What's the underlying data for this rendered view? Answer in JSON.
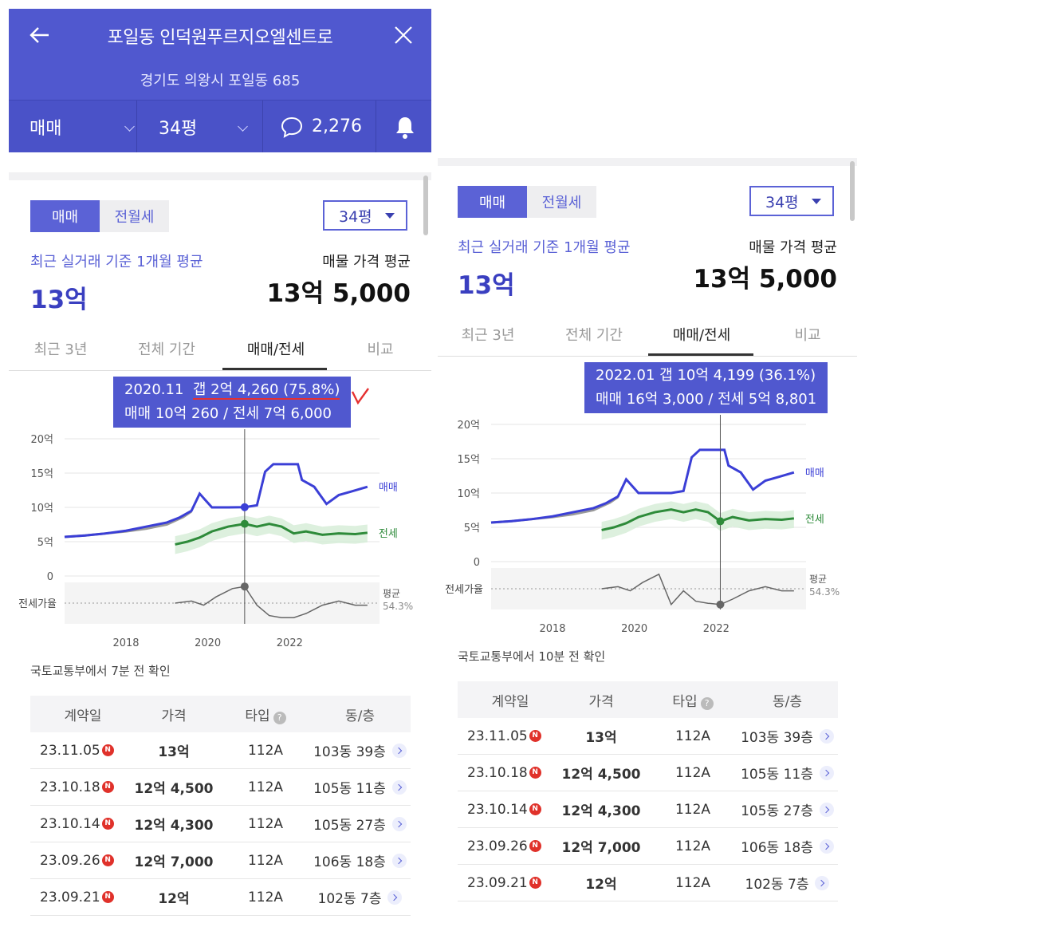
{
  "header": {
    "title": "포일동 인덕원푸르지오엘센트로",
    "address": "경기도 의왕시 포일동 685",
    "trade_type": "매매",
    "area": "34평",
    "comment_count": "2,276"
  },
  "panel_left": {
    "toggle": [
      "매매",
      "전월세"
    ],
    "area_select": "34평",
    "recent_label": "최근 실거래 기준 1개월 평균",
    "recent_value": "13억",
    "listing_label": "매물 가격 평균",
    "listing_value": "13억 5,000",
    "tabs": [
      "최근 3년",
      "전체 기간",
      "매매/전세",
      "비교"
    ],
    "tooltip_line1_date": "2020.11",
    "tooltip_line1_gap": "갭 2억 4,260 (75.8%)",
    "tooltip_line2": "매매 10억 260 / 전세 7억 6,000",
    "confirm": "국토교통부에서 7분 전 확인"
  },
  "panel_right": {
    "toggle": [
      "매매",
      "전월세"
    ],
    "area_select": "34평",
    "recent_label": "최근 실거래 기준 1개월 평균",
    "recent_value": "13억",
    "listing_label": "매물 가격 평균",
    "listing_value": "13억 5,000",
    "tabs": [
      "최근 3년",
      "전체 기간",
      "매매/전세",
      "비교"
    ],
    "tooltip_line1": "2022.01  갭 10억 4,199 (36.1%)",
    "tooltip_line2": "매매 16억 3,000 / 전세 5억 8,801",
    "confirm": "국토교통부에서 10분 전 확인"
  },
  "chart_labels": {
    "y_ticks": [
      "20억",
      "15억",
      "10억",
      "5억",
      "0"
    ],
    "ratio_label": "전세가율",
    "sale": "매매",
    "jeonse": "전세",
    "avg": "평균",
    "avg_value": "54.3%",
    "x_ticks": [
      "2018",
      "2020",
      "2022"
    ]
  },
  "table": {
    "headers": [
      "계약일",
      "가격",
      "타입",
      "동/층"
    ],
    "rows": [
      {
        "date": "23.11.05",
        "price": "13억",
        "type": "112A",
        "floor": "103동 39층"
      },
      {
        "date": "23.10.18",
        "price": "12억 4,500",
        "type": "112A",
        "floor": "105동 11층"
      },
      {
        "date": "23.10.14",
        "price": "12억 4,300",
        "type": "112A",
        "floor": "105동 27층"
      },
      {
        "date": "23.09.26",
        "price": "12억 7,000",
        "type": "112A",
        "floor": "106동 18층"
      },
      {
        "date": "23.09.21",
        "price": "12억",
        "type": "112A",
        "floor": "102동 7층"
      }
    ]
  },
  "chart_data": [
    {
      "type": "line",
      "x_ticks": [
        "2018",
        "2020",
        "2022"
      ],
      "ylim": [
        0,
        20
      ],
      "y_unit": "억",
      "series": [
        {
          "name": "매매",
          "color": "#3b3fd6",
          "x": [
            2016.5,
            2017,
            2017.5,
            2018,
            2018.5,
            2019,
            2019.3,
            2019.6,
            2019.8,
            2020.1,
            2020.5,
            2020.9,
            2021.2,
            2021.4,
            2021.6,
            2021.9,
            2022.2,
            2022.3,
            2022.6,
            2022.9,
            2023.2,
            2023.5,
            2023.9
          ],
          "y": [
            5.7,
            5.9,
            6.2,
            6.6,
            7.2,
            7.8,
            8.5,
            9.5,
            12,
            10,
            10,
            10.03,
            10.3,
            15.2,
            16.3,
            16.3,
            16.3,
            14,
            13,
            10.5,
            11.8,
            12.3,
            13
          ]
        },
        {
          "name": "전세",
          "color": "#2e8b3a",
          "x": [
            2019.2,
            2019.5,
            2019.8,
            2020.1,
            2020.5,
            2020.9,
            2021.2,
            2021.5,
            2021.8,
            2022.1,
            2022.4,
            2022.8,
            2023.2,
            2023.6,
            2023.9
          ],
          "y": [
            4.6,
            5,
            5.6,
            6.5,
            7.2,
            7.6,
            7.2,
            7.6,
            7.2,
            6.2,
            6.5,
            6,
            6.2,
            6.1,
            6.3
          ]
        }
      ],
      "annotation": "2020.11 갭 2억 4,260 (75.8%)",
      "jeonse_ratio_avg": "54.3%"
    },
    {
      "type": "line",
      "x_ticks": [
        "2018",
        "2020",
        "2022"
      ],
      "ylim": [
        0,
        20
      ],
      "y_unit": "억",
      "series": [
        {
          "name": "매매",
          "color": "#3b3fd6",
          "x": [
            2016.5,
            2017,
            2017.5,
            2018,
            2018.5,
            2019,
            2019.3,
            2019.6,
            2019.8,
            2020.1,
            2020.5,
            2020.9,
            2021.2,
            2021.4,
            2021.6,
            2021.9,
            2022.2,
            2022.3,
            2022.6,
            2022.9,
            2023.2,
            2023.5,
            2023.9
          ],
          "y": [
            5.7,
            5.9,
            6.2,
            6.6,
            7.2,
            7.8,
            8.5,
            9.5,
            12,
            10,
            10,
            10,
            10.3,
            15.2,
            16.3,
            16.3,
            16.3,
            14,
            13,
            10.5,
            11.8,
            12.3,
            13
          ]
        },
        {
          "name": "전세",
          "color": "#2e8b3a",
          "x": [
            2019.2,
            2019.5,
            2019.8,
            2020.1,
            2020.5,
            2020.9,
            2021.2,
            2021.5,
            2021.8,
            2022.1,
            2022.4,
            2022.8,
            2023.2,
            2023.6,
            2023.9
          ],
          "y": [
            4.6,
            5,
            5.6,
            6.5,
            7.2,
            7.6,
            7.2,
            7.6,
            7.2,
            5.88,
            6.5,
            6,
            6.2,
            6.1,
            6.3
          ]
        }
      ],
      "annotation": "2022.01 갭 10억 4,199 (36.1%)",
      "jeonse_ratio_avg": "54.3%"
    }
  ]
}
